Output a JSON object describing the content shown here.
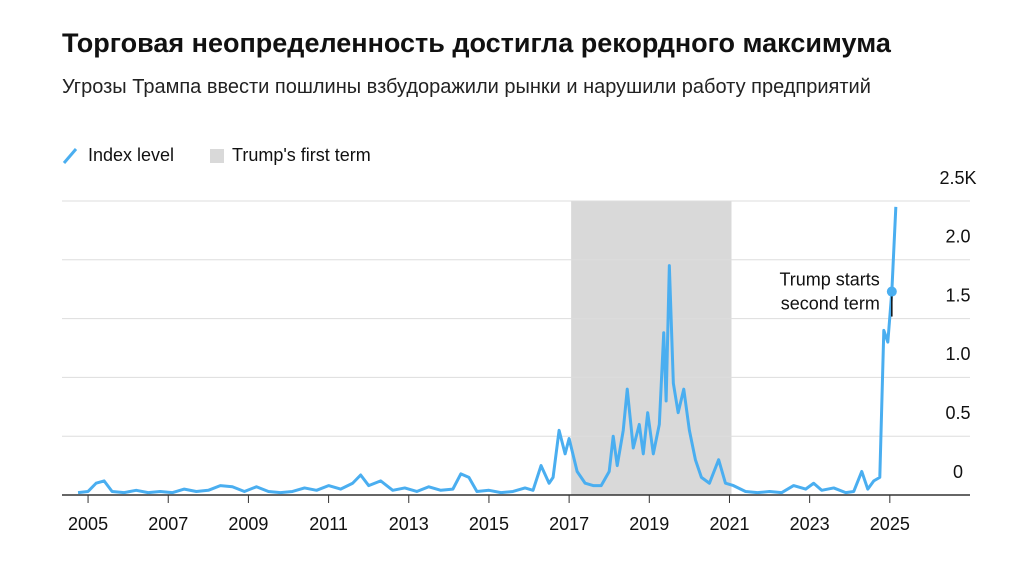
{
  "chart_data": {
    "type": "line",
    "title": "Торговая неопределенность достигла рекордного максимума",
    "subtitle": "Угрозы Трампа ввести пошлины взбудоражили рынки и нарушили работу предприятий",
    "series": [
      {
        "name": "Index level",
        "color": "#4aaef0",
        "x": [
          2004.75,
          2005,
          2005.2,
          2005.4,
          2005.6,
          2005.9,
          2006.2,
          2006.5,
          2006.8,
          2007.1,
          2007.4,
          2007.7,
          2008,
          2008.3,
          2008.6,
          2008.9,
          2009.2,
          2009.5,
          2009.8,
          2010.1,
          2010.4,
          2010.7,
          2011,
          2011.3,
          2011.6,
          2011.8,
          2012,
          2012.3,
          2012.6,
          2012.9,
          2013.2,
          2013.5,
          2013.8,
          2014.1,
          2014.3,
          2014.5,
          2014.7,
          2015,
          2015.3,
          2015.6,
          2015.9,
          2016.1,
          2016.3,
          2016.5,
          2016.6,
          2016.75,
          2016.9,
          2017,
          2017.2,
          2017.4,
          2017.6,
          2017.8,
          2018,
          2018.1,
          2018.2,
          2018.35,
          2018.45,
          2018.6,
          2018.75,
          2018.85,
          2018.96,
          2019.1,
          2019.25,
          2019.36,
          2019.42,
          2019.5,
          2019.6,
          2019.72,
          2019.86,
          2020,
          2020.15,
          2020.3,
          2020.5,
          2020.73,
          2020.9,
          2021.1,
          2021.4,
          2021.7,
          2022,
          2022.3,
          2022.6,
          2022.9,
          2023.1,
          2023.3,
          2023.6,
          2023.9,
          2024.1,
          2024.3,
          2024.45,
          2024.6,
          2024.75,
          2024.85,
          2024.95,
          2025.05,
          2025.15
        ],
        "values": [
          0.02,
          0.03,
          0.1,
          0.12,
          0.03,
          0.02,
          0.04,
          0.02,
          0.03,
          0.02,
          0.05,
          0.03,
          0.04,
          0.08,
          0.07,
          0.03,
          0.07,
          0.03,
          0.02,
          0.03,
          0.06,
          0.04,
          0.08,
          0.05,
          0.1,
          0.17,
          0.08,
          0.12,
          0.04,
          0.06,
          0.03,
          0.07,
          0.04,
          0.05,
          0.18,
          0.15,
          0.03,
          0.04,
          0.02,
          0.03,
          0.06,
          0.04,
          0.25,
          0.1,
          0.15,
          0.55,
          0.35,
          0.48,
          0.2,
          0.1,
          0.08,
          0.08,
          0.2,
          0.5,
          0.25,
          0.55,
          0.9,
          0.4,
          0.6,
          0.35,
          0.7,
          0.35,
          0.6,
          1.38,
          0.8,
          1.95,
          0.95,
          0.7,
          0.9,
          0.55,
          0.3,
          0.15,
          0.1,
          0.3,
          0.1,
          0.08,
          0.03,
          0.02,
          0.03,
          0.02,
          0.08,
          0.05,
          0.1,
          0.04,
          0.06,
          0.02,
          0.03,
          0.2,
          0.05,
          0.12,
          0.15,
          1.4,
          1.3,
          1.73,
          2.45
        ]
      }
    ],
    "shade": {
      "name": "Trump's first term",
      "color": "#d9d9d9",
      "x": [
        2017.05,
        2021.05
      ]
    },
    "annotation": {
      "lines": [
        "Trump starts",
        "second term"
      ],
      "x": 2025.05,
      "value": 1.73
    },
    "xlim": [
      2004.35,
      2027
    ],
    "xticks": [
      2005,
      2007,
      2009,
      2011,
      2013,
      2015,
      2017,
      2019,
      2021,
      2023,
      2025
    ],
    "ylim": [
      0,
      2.5
    ],
    "yticks": [
      0,
      0.5,
      {
        "value": 1,
        "label": "1.0"
      },
      1.5,
      {
        "value": 2,
        "label": "2.0"
      },
      {
        "value": 2.5,
        "label": "2.5K"
      }
    ],
    "grid": true
  }
}
